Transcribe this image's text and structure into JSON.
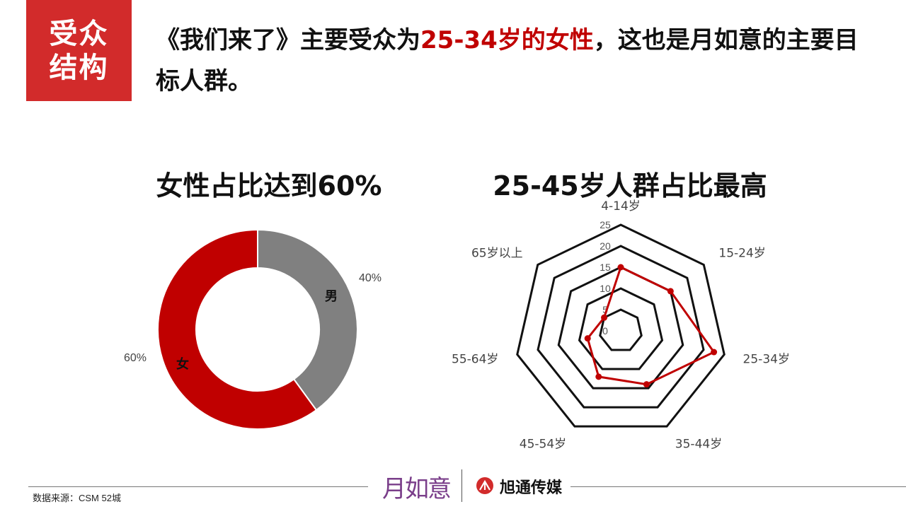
{
  "badge": {
    "line1": "受众",
    "line2": "结构"
  },
  "headline": {
    "part1": "《我们来了》主要受众为",
    "highlight": "25-34岁的女性",
    "part2": "，这也是月如意的主要目标人群。"
  },
  "colors": {
    "accent": "#c00000",
    "badge": "#d22b2b",
    "male": "#808080",
    "radar_series": "#c00000"
  },
  "chart_data": [
    {
      "type": "pie",
      "title": "女性占比达到60%",
      "categories": [
        "男",
        "女"
      ],
      "values": [
        40,
        60
      ],
      "value_labels": [
        "40%",
        "60%"
      ],
      "colors": [
        "#808080",
        "#c00000"
      ],
      "donut": true
    },
    {
      "type": "radar",
      "title": "25-45岁人群占比最高",
      "categories": [
        "4-14岁",
        "15-24岁",
        "25-34岁",
        "35-44岁",
        "45-54岁",
        "55-64岁",
        "65岁以上"
      ],
      "values": [
        15,
        15,
        22.5,
        14,
        12,
        8,
        5
      ],
      "rlim": [
        0,
        25
      ],
      "ticks": [
        "0",
        "5",
        "10",
        "15",
        "20",
        "25"
      ],
      "grid": true
    }
  ],
  "footer": {
    "source": "数据来源：CSM  52城",
    "logo1": "月如意",
    "logo2": "旭通传媒"
  }
}
